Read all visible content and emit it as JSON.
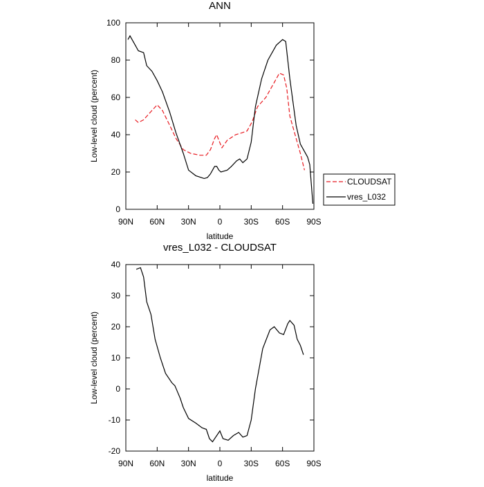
{
  "chart_data": [
    {
      "type": "line",
      "title": "ANN",
      "x_label": "latitude",
      "y_label": "Low-level cloud (percent)",
      "xlim": [
        90,
        -90
      ],
      "ylim": [
        0,
        100
      ],
      "xticks": [
        {
          "value": 90,
          "label": "90N"
        },
        {
          "value": 60,
          "label": "60N"
        },
        {
          "value": 30,
          "label": "30N"
        },
        0,
        {
          "value": -30,
          "label": "30S"
        },
        {
          "value": -60,
          "label": "60S"
        },
        {
          "value": -90,
          "label": "90S"
        }
      ],
      "yticks": [
        0,
        20,
        40,
        60,
        80,
        100
      ],
      "legend": "outside-right-bottom",
      "series": [
        {
          "name": "CLOUDSAT",
          "color": "#e8171d",
          "dash": true,
          "x": [
            81,
            78,
            73,
            65,
            60,
            55,
            48,
            42,
            35,
            28,
            19,
            13,
            9,
            5,
            3,
            1,
            -2,
            -7,
            -15,
            -21,
            -26,
            -31,
            -36,
            -44,
            -51,
            -57,
            -61,
            -64,
            -67,
            -73,
            -77,
            -81
          ],
          "values": [
            48,
            46.5,
            48,
            53,
            56,
            53,
            45,
            38,
            32,
            30,
            29,
            29,
            32,
            38,
            40,
            37,
            33,
            37,
            40,
            41,
            42,
            47,
            55,
            60,
            67,
            73,
            72,
            65,
            50,
            38,
            30,
            21
          ]
        },
        {
          "name": "vres_L032",
          "color": "#000000",
          "dash": false,
          "x": [
            88,
            86,
            81,
            78,
            73,
            70,
            65,
            60,
            55,
            48,
            42,
            35,
            30,
            23,
            15,
            12,
            9,
            5,
            3,
            1,
            -1,
            -7,
            -11,
            -16,
            -19,
            -22,
            -26,
            -30,
            -34,
            -40,
            -46,
            -54,
            -60,
            -63,
            -67,
            -73,
            -77,
            -84,
            -86,
            -89
          ],
          "values": [
            91,
            93,
            88,
            85,
            84,
            77,
            74,
            69,
            63,
            52,
            41,
            30,
            21,
            18,
            16.5,
            17,
            19,
            23,
            23,
            21,
            20,
            21,
            23,
            26,
            27,
            25,
            27,
            36,
            55,
            70,
            80,
            88,
            91,
            90,
            70,
            45,
            35,
            28,
            24,
            3
          ]
        }
      ]
    },
    {
      "type": "line",
      "title": "vres_L032 - CLOUDSAT",
      "x_label": "latitude",
      "y_label": "Low-level cloud (percent)",
      "xlim": [
        90,
        -90
      ],
      "ylim": [
        -20,
        40
      ],
      "xticks": [
        {
          "value": 90,
          "label": "90N"
        },
        {
          "value": 60,
          "label": "60N"
        },
        {
          "value": 30,
          "label": "30N"
        },
        0,
        {
          "value": -30,
          "label": "30S"
        },
        {
          "value": -60,
          "label": "60S"
        },
        {
          "value": -90,
          "label": "90S"
        }
      ],
      "yticks": [
        -20,
        -10,
        0,
        10,
        20,
        30,
        40
      ],
      "series": [
        {
          "color": "#000000",
          "dash": false,
          "x": [
            80,
            76,
            73,
            70,
            66,
            62,
            57,
            52,
            46,
            43,
            38,
            35,
            30,
            23,
            17,
            13,
            10,
            7,
            3,
            0,
            -3,
            -8,
            -13,
            -18,
            -22,
            -26,
            -30,
            -34,
            -41,
            -48,
            -52,
            -57,
            -61,
            -65,
            -67,
            -71,
            -74,
            -77,
            -80
          ],
          "values": [
            38.5,
            39,
            36,
            28,
            24,
            16,
            10,
            5,
            2,
            1,
            -3,
            -6,
            -9.5,
            -11,
            -12.5,
            -13,
            -16,
            -17,
            -15,
            -13.5,
            -16,
            -16.5,
            -15,
            -14,
            -15.5,
            -15,
            -10,
            0,
            13,
            19,
            20,
            18,
            17.5,
            21,
            22,
            20.5,
            16,
            14,
            11
          ]
        }
      ]
    }
  ]
}
